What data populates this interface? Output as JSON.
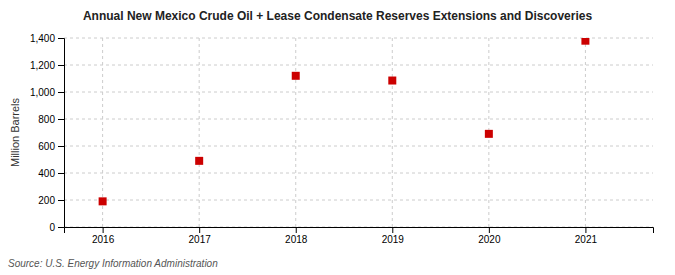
{
  "chart_data": {
    "type": "scatter",
    "title": "Annual New Mexico Crude Oil + Lease Condensate Reserves Extensions and Discoveries",
    "y_label": "Million Barrels",
    "annotations": [
      "Source: U.S. Energy Information Administration"
    ],
    "x": [
      2016,
      2017,
      2018,
      2019,
      2020,
      2021
    ],
    "values": [
      190,
      490,
      1120,
      1085,
      690,
      1380
    ],
    "color": "#cc0000",
    "marker": "square",
    "xlim": [
      2015.6,
      2021.7
    ],
    "xticks": [
      2016,
      2017,
      2018,
      2019,
      2020,
      2021
    ],
    "ylim": [
      0,
      1400
    ],
    "yticks": [
      0,
      200,
      400,
      600,
      800,
      {
        "value": 1000,
        "label": "1,000"
      },
      {
        "value": 1200,
        "label": "1,200"
      },
      {
        "value": 1400,
        "label": "1,400"
      }
    ],
    "grid": true
  }
}
